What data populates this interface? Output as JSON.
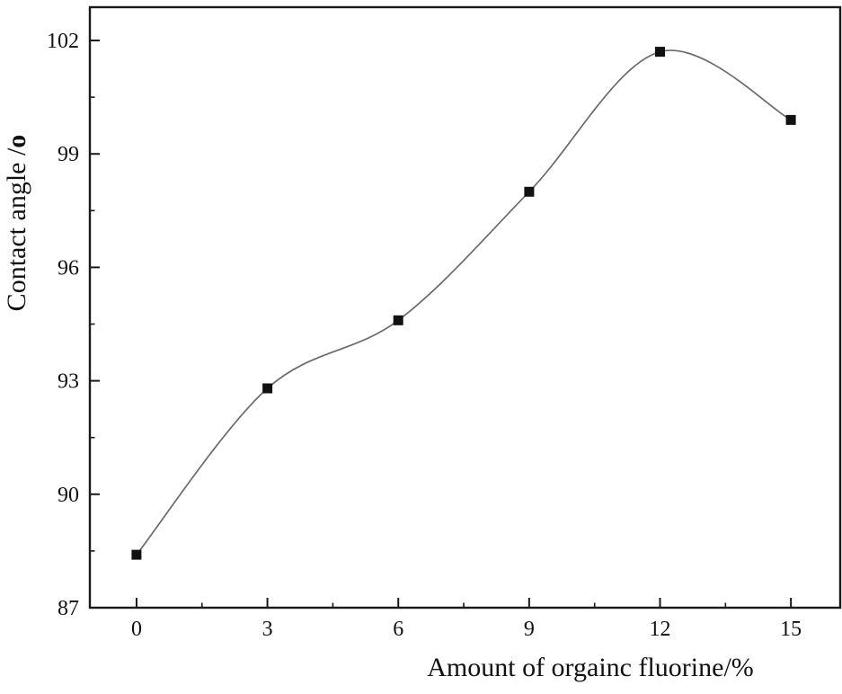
{
  "chart_data": {
    "type": "line",
    "title": "",
    "xlabel": "Amount of orgainc fluorine/%",
    "ylabel": "Contact angle /o",
    "ylabel_main": "Contact angle /",
    "ylabel_unit": "o",
    "x": [
      0,
      3,
      6,
      9,
      12,
      15
    ],
    "series": [
      {
        "name": "contact-angle",
        "values": [
          88.4,
          92.8,
          94.6,
          98.0,
          101.7,
          99.9
        ]
      }
    ],
    "xticks": [
      0,
      3,
      6,
      9,
      12,
      15
    ],
    "yticks": [
      87,
      90,
      93,
      96,
      99,
      102
    ],
    "xminor": [
      1.5,
      4.5,
      7.5,
      10.5,
      13.5
    ],
    "yminor": [
      88.5,
      91.5,
      94.5,
      97.5,
      100.5
    ],
    "xlim": [
      -1.07,
      16.13
    ],
    "ylim": [
      87,
      102.88
    ],
    "grid": false,
    "legend": null,
    "marker": "square",
    "colors": {
      "line": "#6a6a6a",
      "marker": "#111111",
      "frame": "#1a1a1a",
      "text": "#111111"
    }
  }
}
